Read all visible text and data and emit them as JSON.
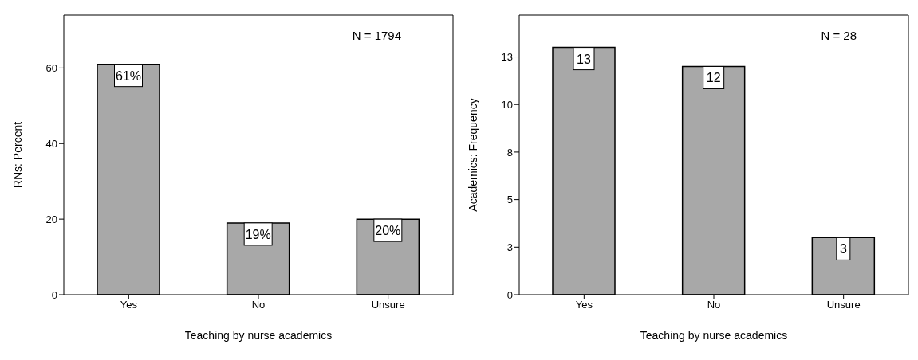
{
  "chart_data": [
    {
      "type": "bar",
      "categories": [
        "Yes",
        "No",
        "Unsure"
      ],
      "values": [
        61,
        19,
        20
      ],
      "value_labels": [
        "61%",
        "19%",
        "20%"
      ],
      "color": "#a8a8a8",
      "xlabel": "Teaching by nurse academics",
      "ylabel": "RNs: Percent",
      "ylim": [
        0,
        74
      ],
      "yticks": [
        0,
        20,
        40,
        60
      ],
      "annotations": [
        "N = 1794"
      ],
      "grid": false,
      "legend": false
    },
    {
      "type": "bar",
      "categories": [
        "Yes",
        "No",
        "Unsure"
      ],
      "values": [
        13,
        12,
        3
      ],
      "data_labels": true,
      "color": "#a8a8a8",
      "xlabel": "Teaching by nurse academics",
      "ylabel": "Academics: Frequency",
      "ylim": [
        0,
        14.7
      ],
      "yticks": [
        0,
        {
          "value": 2.5,
          "label": "3"
        },
        5,
        {
          "value": 7.5,
          "label": "8"
        },
        10,
        {
          "value": 12.5,
          "label": "13"
        }
      ],
      "annotations": [
        "N = 28"
      ],
      "grid": false,
      "legend": false
    }
  ]
}
